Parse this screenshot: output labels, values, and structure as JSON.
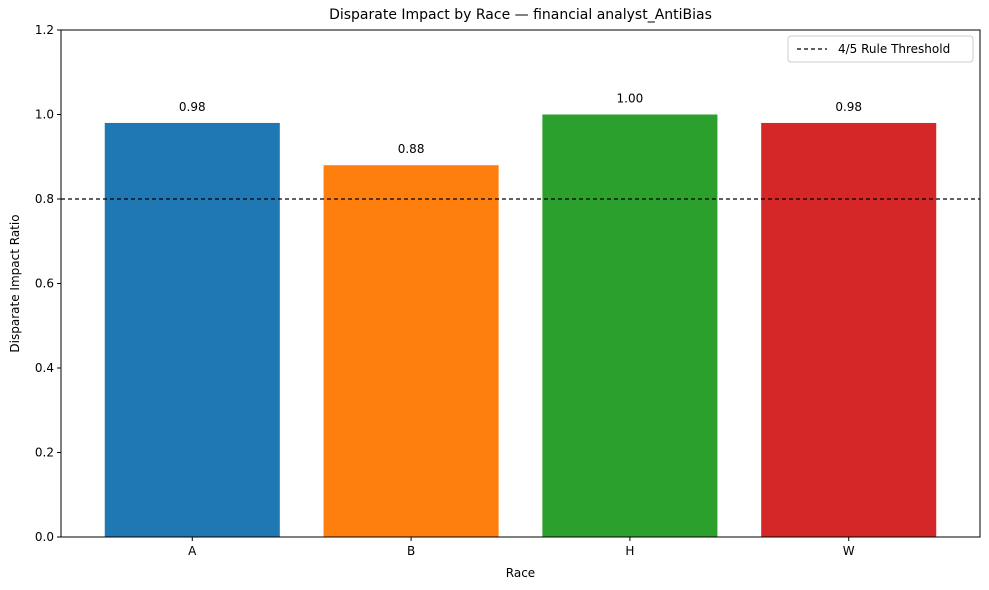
{
  "chart_data": {
    "type": "bar",
    "title": "Disparate Impact by Race — financial analyst_AntiBias",
    "xlabel": "Race",
    "ylabel": "Disparate Impact Ratio",
    "categories": [
      "A",
      "B",
      "H",
      "W"
    ],
    "values": [
      0.98,
      0.88,
      1.0,
      0.98
    ],
    "data_labels": [
      "0.98",
      "0.88",
      "1.00",
      "0.98"
    ],
    "colors": [
      "#1f77b4",
      "#ff7f0e",
      "#2ca02c",
      "#d62728"
    ],
    "ylim": [
      0,
      1.2
    ],
    "yticks": [
      0.0,
      0.2,
      0.4,
      0.6,
      0.8,
      1.0,
      1.2
    ],
    "ytick_labels": [
      "0.0",
      "0.2",
      "0.4",
      "0.6",
      "0.8",
      "1.0",
      "1.2"
    ],
    "threshold": {
      "value": 0.8,
      "label": "4/5 Rule Threshold",
      "style": "dashed",
      "color": "#000000"
    },
    "grid": false,
    "legend_position": "top-right"
  }
}
